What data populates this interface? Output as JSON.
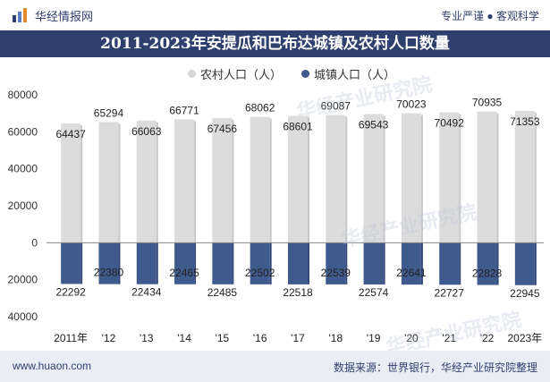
{
  "header": {
    "brand": "华经情报网",
    "slogan": "专业严谨 ● 客观科学"
  },
  "title": "2011-2023年安提瓜和巴布达城镇及农村人口数量",
  "footer": {
    "site": "www.huaon.com",
    "source": "数据来源：世界银行，华经产业研究院整理"
  },
  "watermark": "华经产业研究院",
  "colors": {
    "rural": "#dcdcdc",
    "urban": "#3f5a8c",
    "title_bg": "#2f3f6e",
    "footer_bg": "#e9edf6"
  },
  "chart_data": {
    "type": "bar",
    "categories": [
      "2011年",
      "'12",
      "'13",
      "'14",
      "'15",
      "'16",
      "'17",
      "'18",
      "'19",
      "'20",
      "'21",
      "'22",
      "2023年"
    ],
    "series": [
      {
        "name": "农村人口（人）",
        "values": [
          64437,
          65294,
          66063,
          66771,
          67456,
          68062,
          68601,
          69087,
          69543,
          70023,
          70492,
          70935,
          71353
        ]
      },
      {
        "name": "城镇人口（人）",
        "values": [
          -22292,
          -22380,
          -22434,
          -22465,
          -22485,
          -22502,
          -22518,
          -22539,
          -22574,
          -22641,
          -22727,
          -22828,
          -22945
        ]
      }
    ],
    "data_labels": {
      "rural": [
        "64437",
        "65294",
        "66063",
        "66771",
        "67456",
        "68062",
        "68601",
        "69087",
        "69543",
        "70023",
        "70492",
        "70935",
        "71353"
      ],
      "urban": [
        "22292",
        "22380",
        "22434",
        "22465",
        "22485",
        "22502",
        "22518",
        "22539",
        "22574",
        "22641",
        "22727",
        "22828",
        "22945"
      ]
    },
    "y_ticks": [
      80000,
      60000,
      40000,
      20000,
      0,
      -20000,
      -40000
    ],
    "y_tick_labels": [
      "80000",
      "60000",
      "40000",
      "20000",
      "0",
      "20000",
      "40000"
    ],
    "ylim": [
      -40000,
      80000
    ],
    "legend_position": "top-center",
    "grid": false
  }
}
